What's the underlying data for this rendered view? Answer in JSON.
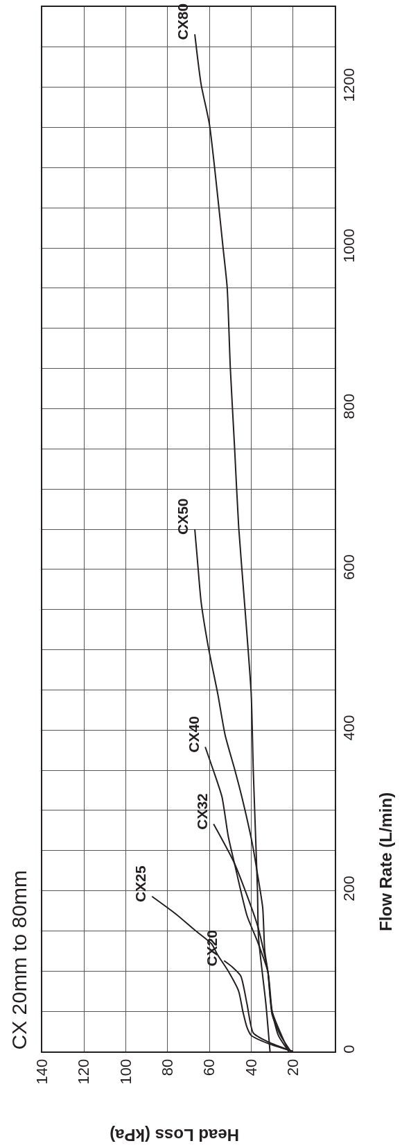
{
  "chart_data": {
    "type": "line",
    "title": "CX 20mm to 80mm",
    "xlabel": "Head Loss (kPa)",
    "ylabel": "Flow Rate (L/min)",
    "xlim": [
      140,
      0
    ],
    "xticks": [
      140,
      120,
      100,
      80,
      60,
      40,
      20
    ],
    "ylim": [
      0,
      1300
    ],
    "yticks": [
      0,
      {
        "value": 50,
        "label": null
      },
      {
        "value": 100,
        "label": null
      },
      {
        "value": 150,
        "label": null
      },
      200,
      {
        "value": 250,
        "label": null
      },
      {
        "value": 300,
        "label": null
      },
      {
        "value": 350,
        "label": null
      },
      400,
      {
        "value": 450,
        "label": null
      },
      {
        "value": 500,
        "label": null
      },
      {
        "value": 550,
        "label": null
      },
      600,
      {
        "value": 650,
        "label": null
      },
      {
        "value": 700,
        "label": null
      },
      {
        "value": 750,
        "label": null
      },
      800,
      {
        "value": 850,
        "label": null
      },
      {
        "value": 900,
        "label": null
      },
      {
        "value": 950,
        "label": null
      },
      1000,
      {
        "value": 1050,
        "label": null
      },
      {
        "value": 1100,
        "label": null
      },
      {
        "value": 1150,
        "label": null
      },
      1200,
      {
        "value": 1250,
        "label": null
      },
      {
        "value": 1300,
        "label": null
      }
    ],
    "grid": true,
    "marker": "none",
    "line_style": "solid",
    "series": [
      {
        "name": "CX20",
        "color": "#231f20",
        "values": [
          0,
          12,
          23,
          59,
          94,
          105,
          113
        ],
        "x": [
          20,
          32,
          39,
          42,
          45,
          49,
          53
        ]
      },
      {
        "name": "CX25",
        "color": "#231f20",
        "values": [
          0,
          10,
          20,
          30,
          50,
          75,
          100,
          120,
          134,
          151,
          171,
          193
        ],
        "x": [
          20,
          32,
          40,
          42,
          44,
          46,
          51,
          56,
          59,
          67,
          76,
          87.5
        ]
      },
      {
        "name": "CX32",
        "color": "#231f20",
        "values": [
          0,
          20,
          46,
          99,
          157,
          234,
          283
        ],
        "x": [
          21,
          26,
          30,
          32,
          37,
          48,
          58
        ]
      },
      {
        "name": "CX40",
        "color": "#231f20",
        "values": [
          0,
          20,
          50,
          99,
          137,
          169,
          234,
          268,
          317,
          349,
          379
        ],
        "x": [
          22,
          27,
          30,
          32,
          37,
          42,
          48,
          51,
          54,
          58,
          62
        ]
      },
      {
        "name": "CX50",
        "color": "#231f20",
        "values": [
          0,
          50,
          99,
          125,
          179,
          221,
          259,
          317,
          352,
          394,
          445,
          503,
          560,
          604,
          650
        ],
        "x": [
          22,
          30,
          32,
          33.5,
          34.5,
          37,
          39.5,
          44.5,
          48,
          52.5,
          56,
          60.5,
          64,
          65.5,
          67
        ]
      },
      {
        "name": "CX80",
        "color": "#231f20",
        "values": [
          0,
          60,
          142,
          201,
          349,
          445,
          552,
          653,
          754,
          851,
          951,
          1001,
          1051,
          1154,
          1204,
          1266
        ],
        "x": [
          31,
          33,
          36.5,
          37,
          39,
          40,
          43,
          46,
          48,
          50,
          51.5,
          53.5,
          55.5,
          60,
          64,
          67
        ]
      }
    ]
  }
}
